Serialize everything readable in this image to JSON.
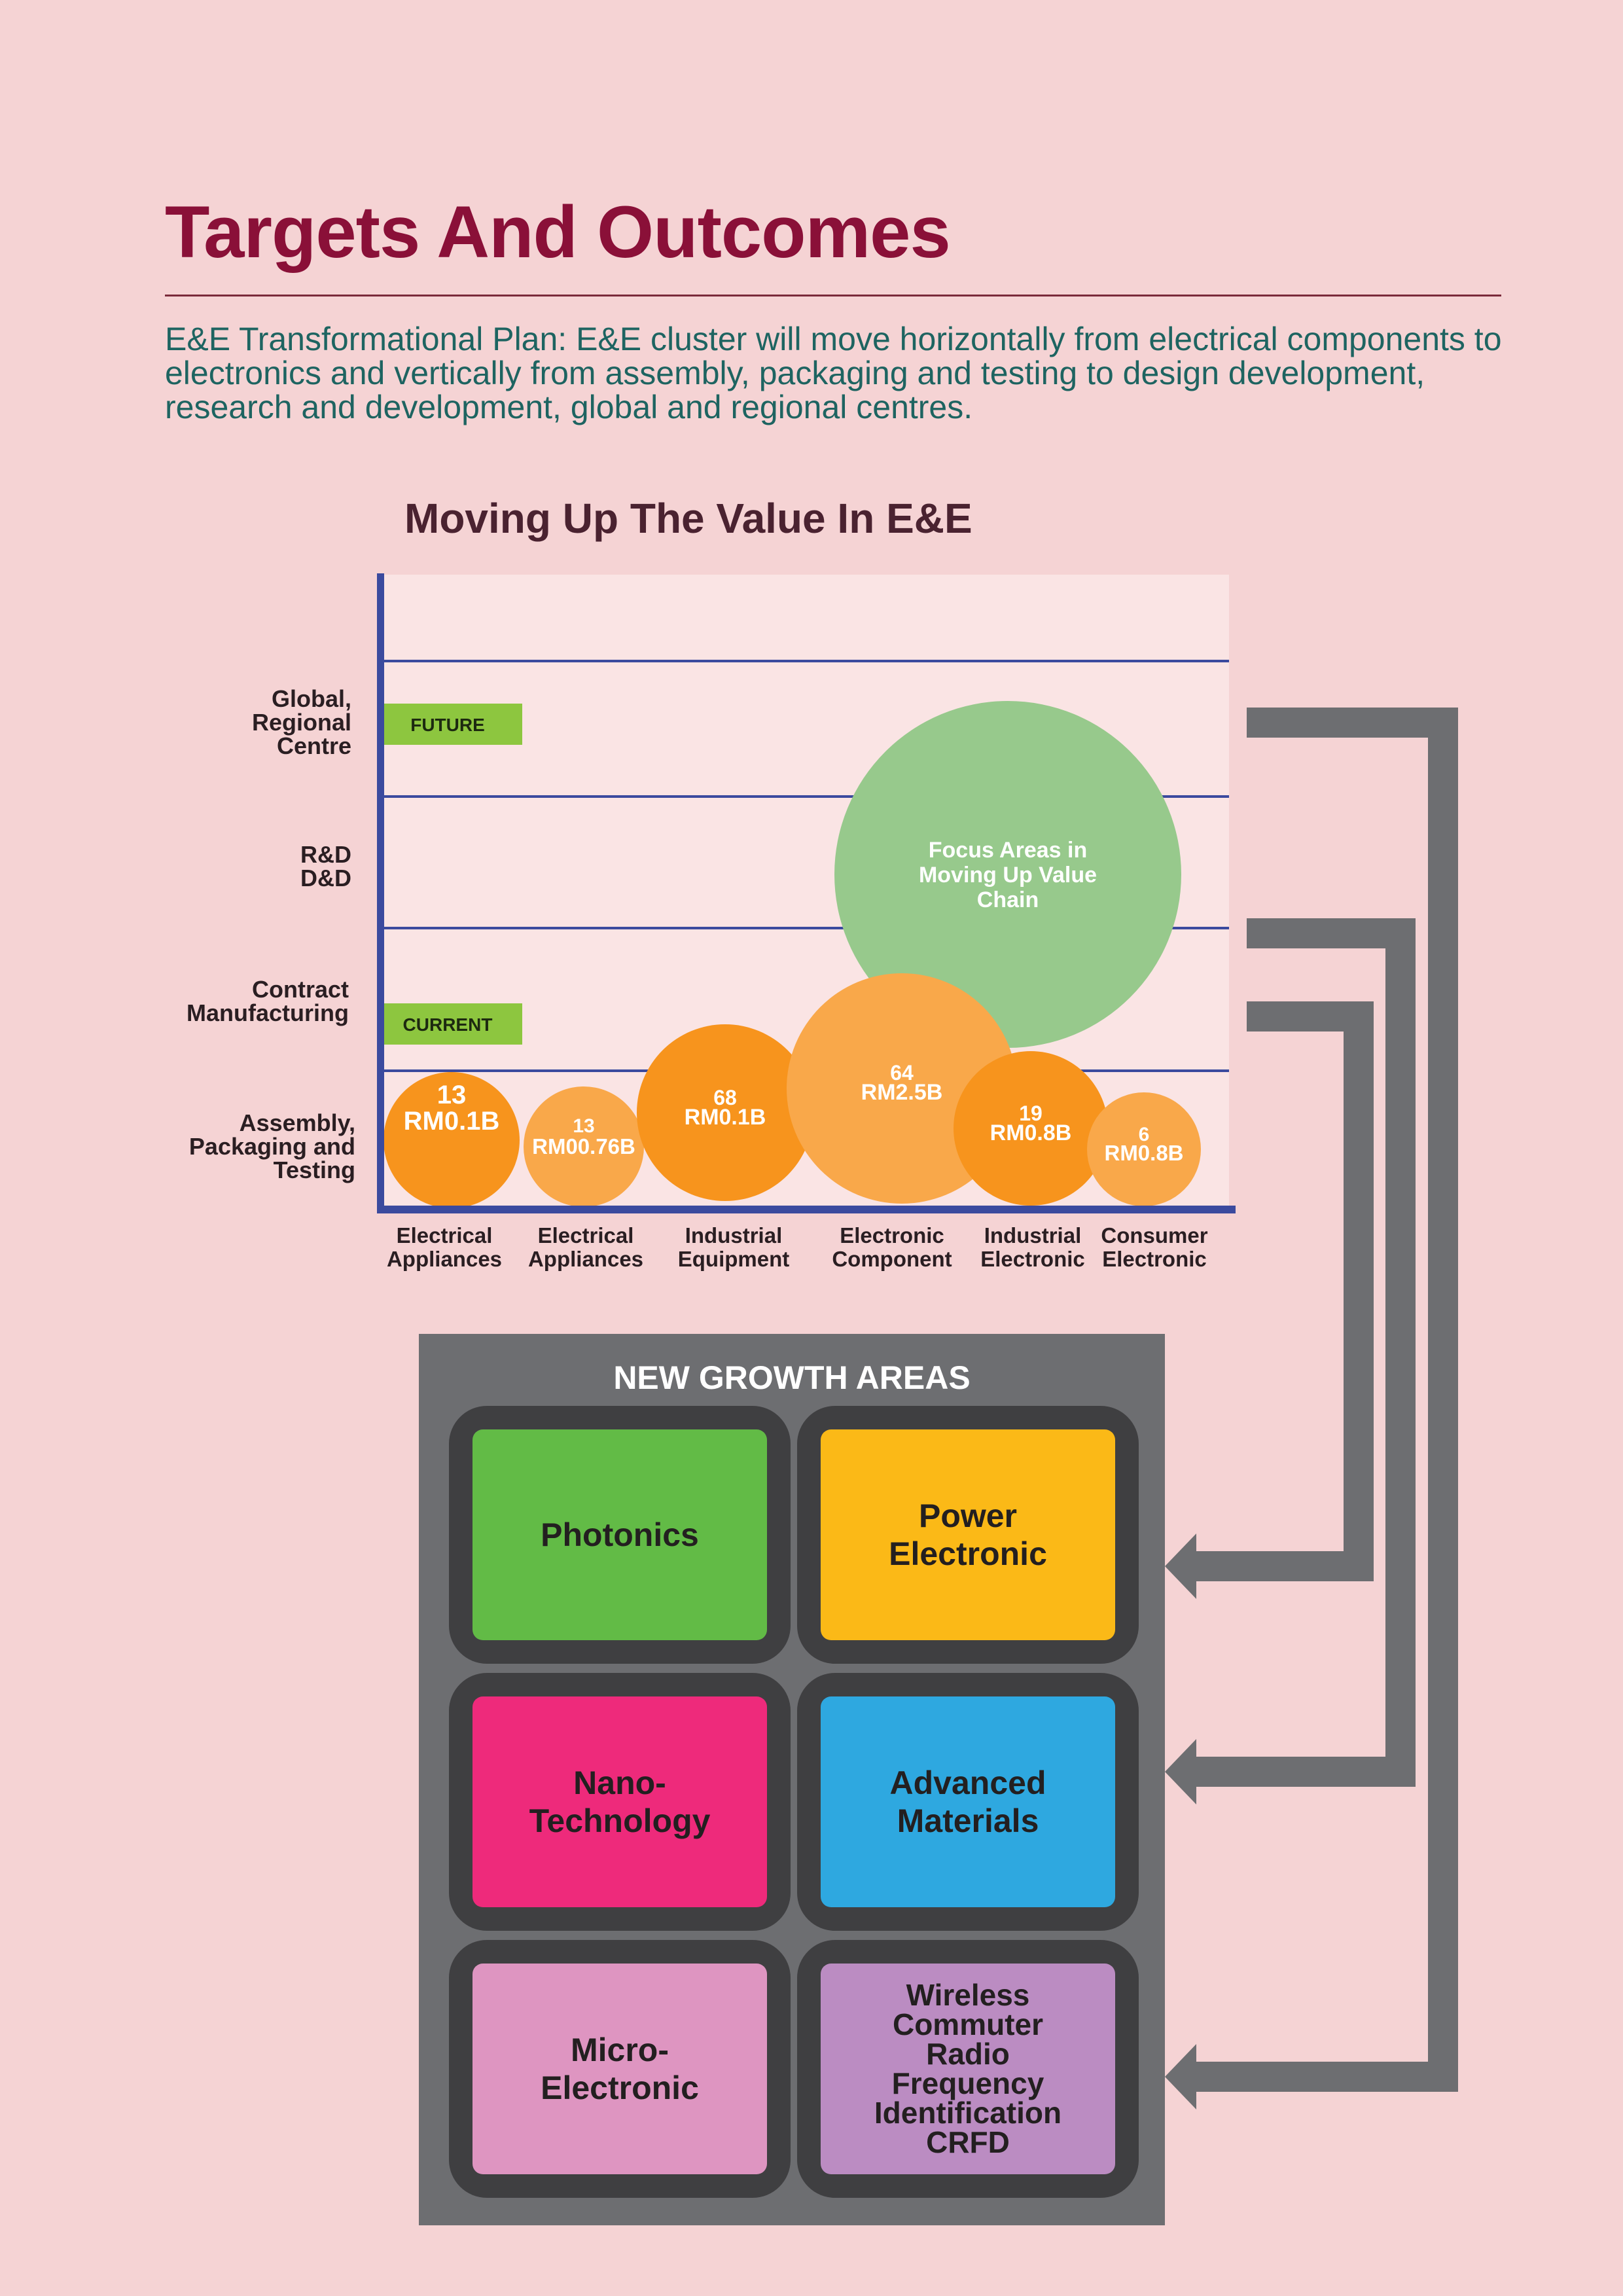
{
  "page": {
    "title": "Targets And Outcomes",
    "intro_lines": [
      "E&E Transformational Plan: E&E cluster will move horizontally from electrical components to",
      "electronics and vertically from assembly,  packaging and testing to design development,",
      "research and development, global and regional centres."
    ]
  },
  "chart_data": {
    "type": "bubble",
    "title": "Moving Up The Value In E&E",
    "y_levels": [
      {
        "lines": [
          "Global,",
          "Regional",
          "Centre"
        ]
      },
      {
        "lines": [
          "R&D",
          "D&D"
        ]
      },
      {
        "lines": [
          "Contract",
          "Manufacturing"
        ]
      },
      {
        "lines": [
          "Assembly,",
          "Packaging and",
          "Testing"
        ]
      }
    ],
    "stage_tags": [
      {
        "label": "FUTURE",
        "level": "Global, Regional Centre"
      },
      {
        "label": "CURRENT",
        "level": "Contract Manufacturing"
      }
    ],
    "categories": [
      {
        "lines": [
          "Electrical",
          "Appliances"
        ]
      },
      {
        "lines": [
          "Electrical",
          "Appliances"
        ]
      },
      {
        "lines": [
          "Industrial",
          "Equipment"
        ]
      },
      {
        "lines": [
          "Electronic",
          "Component"
        ]
      },
      {
        "lines": [
          "Industrial",
          "Electronic"
        ]
      },
      {
        "lines": [
          "Consumer",
          "Electronic"
        ]
      }
    ],
    "bubbles": [
      {
        "category_index": 0,
        "count": "13",
        "value": "RM0.1B",
        "color": "#f7941d"
      },
      {
        "category_index": 1,
        "count": "13",
        "value": "RM00.76B",
        "color": "#f9a84a"
      },
      {
        "category_index": 2,
        "count": "68",
        "value": "RM0.1B",
        "color": "#f7941d"
      },
      {
        "category_index": 3,
        "count": "64",
        "value": "RM2.5B",
        "color": "#f9a84a"
      },
      {
        "category_index": 4,
        "count": "19",
        "value": "RM0.8B",
        "color": "#f7941d"
      },
      {
        "category_index": 5,
        "count": "6",
        "value": "RM0.8B",
        "color": "#f9a84a"
      }
    ],
    "focus_bubble": {
      "lines": [
        "Focus Areas in",
        "Moving Up Value",
        "Chain"
      ],
      "color": "#97c98c"
    },
    "colors": {
      "axis": "#3b4a9e",
      "plot_bg": "#fae4e4",
      "tag": "#8dc63f",
      "connector": "#6d6e71"
    }
  },
  "growth": {
    "title": "NEW GROWTH AREAS",
    "tiles": [
      {
        "label": "Photonics",
        "color": "#62bb46"
      },
      {
        "label": "Power\nElectronic",
        "color": "#fbb917"
      },
      {
        "label": "Nano-\nTechnology",
        "color": "#ee2a7b"
      },
      {
        "label": "Advanced\nMaterials",
        "color": "#2ea8e0"
      },
      {
        "label": "Micro-\nElectronic",
        "color": "#de95c1"
      },
      {
        "label": "Wireless\nCommuter\nRadio\nFrequency\nIdentification\nCRFD",
        "color": "#bb8cc2"
      }
    ]
  }
}
